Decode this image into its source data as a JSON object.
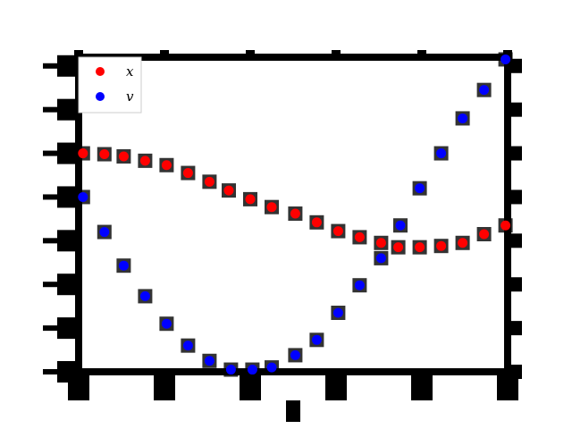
{
  "chart_data": {
    "type": "scatter",
    "title": "",
    "xlabel": "",
    "ylabel": "",
    "xlim": [
      0,
      10
    ],
    "ylim": [
      0,
      7.2
    ],
    "x_ticks": [
      0,
      2,
      4,
      6,
      8,
      10
    ],
    "y_ticks": [
      0,
      1,
      2,
      3,
      4,
      5,
      6,
      7
    ],
    "grid": false,
    "legend": "top-left",
    "series": [
      {
        "name": "x",
        "color": "#ff0000",
        "marker": "circle",
        "x": [
          0.1,
          0.6,
          1.05,
          1.55,
          2.05,
          2.55,
          3.05,
          3.5,
          4.0,
          4.5,
          5.05,
          5.55,
          6.05,
          6.55,
          7.05,
          7.45,
          7.95,
          8.45,
          8.95,
          9.45,
          9.95
        ],
        "y": [
          5.0,
          4.98,
          4.93,
          4.83,
          4.73,
          4.55,
          4.35,
          4.15,
          3.95,
          3.77,
          3.62,
          3.42,
          3.22,
          3.08,
          2.95,
          2.85,
          2.85,
          2.88,
          2.95,
          3.15,
          3.35
        ]
      },
      {
        "name": "v",
        "color": "#0000ff",
        "marker": "circle",
        "x": [
          0.1,
          0.6,
          1.05,
          1.55,
          2.05,
          2.55,
          3.05,
          3.55,
          4.05,
          4.5,
          5.05,
          5.55,
          6.05,
          6.55,
          7.05,
          7.5,
          7.95,
          8.45,
          8.95,
          9.45,
          9.95
        ],
        "y": [
          4.0,
          3.2,
          2.43,
          1.73,
          1.1,
          0.6,
          0.25,
          0.05,
          0.05,
          0.1,
          0.38,
          0.73,
          1.35,
          1.98,
          2.6,
          3.35,
          4.2,
          5.0,
          5.8,
          6.45,
          7.15
        ]
      }
    ]
  }
}
